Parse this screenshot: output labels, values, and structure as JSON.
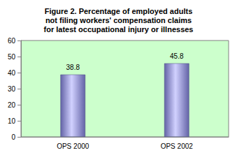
{
  "chart_data": {
    "type": "bar",
    "title": "Figure 2. Percentage of employed adults\nnot filing workers' compensation claims\nfor latest occupational injury or illnesses",
    "categories": [
      "OPS 2000",
      "OPS 2002"
    ],
    "values": [
      38.8,
      45.8
    ],
    "color": "#9999ff",
    "ylim": [
      0,
      60
    ],
    "yticks": [
      0,
      10,
      20,
      30,
      40,
      50,
      60
    ],
    "grid": false,
    "data_labels": true
  }
}
